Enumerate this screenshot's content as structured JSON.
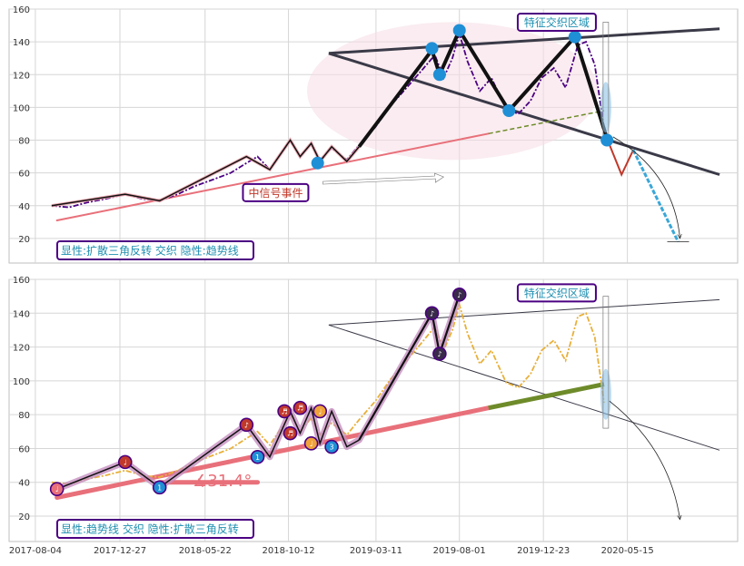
{
  "colors": {
    "price_dark": "#4b0082",
    "price_gold": "#e8b03a",
    "trend_pink": "#e8707a",
    "wedge_gray": "#3a3a48",
    "zigzag_black": "#111111",
    "node_blue": "#1f8fd6",
    "olive_green": "#6e8b2a",
    "proj_blue": "#3aa7d8",
    "label_text": "#1f8fb0",
    "label_border": "#4b0082",
    "event_text": "#c0392b"
  },
  "chart_data": [
    {
      "type": "line",
      "panel": "top",
      "ylim": [
        5,
        160
      ],
      "yticks": [
        20,
        40,
        60,
        80,
        100,
        120,
        140,
        160
      ],
      "x_ticks": [
        "2017-08-04",
        "2017-12-27",
        "2018-05-22",
        "2018-10-12",
        "2019-03-11",
        "2019-08-01",
        "2019-12-23",
        "2020-05-15"
      ],
      "grid": true,
      "series": [
        {
          "role": "price",
          "x": [
            "2017-09-01",
            "2017-10-01",
            "2017-11-01",
            "2017-12-01",
            "2018-01-05",
            "2018-02-05",
            "2018-03-05",
            "2018-04-05",
            "2018-05-05",
            "2018-06-05",
            "2018-07-05",
            "2018-08-01",
            "2018-08-20",
            "2018-09-10",
            "2018-10-01",
            "2018-10-15",
            "2018-11-01",
            "2018-11-20",
            "2018-12-05",
            "2018-12-25",
            "2019-01-20",
            "2019-02-10",
            "2019-03-10",
            "2019-04-05",
            "2019-05-05",
            "2019-06-01",
            "2019-06-20",
            "2019-07-05",
            "2019-07-20",
            "2019-08-01",
            "2019-08-15",
            "2019-09-05",
            "2019-09-25",
            "2019-10-20",
            "2019-11-10",
            "2019-12-01",
            "2019-12-20",
            "2020-01-10",
            "2020-01-30",
            "2020-02-20",
            "2020-03-05",
            "2020-03-20",
            "2020-04-05"
          ],
          "y": [
            40,
            39,
            42,
            44,
            47,
            44,
            43,
            47,
            52,
            56,
            60,
            66,
            70,
            62,
            73,
            80,
            70,
            78,
            68,
            75,
            68,
            77,
            88,
            101,
            113,
            124,
            132,
            118,
            130,
            145,
            128,
            110,
            118,
            99,
            96,
            104,
            118,
            124,
            112,
            138,
            140,
            126,
            87
          ]
        },
        {
          "role": "zigzag",
          "x": [
            "2017-09-01",
            "2018-01-05",
            "2018-03-05",
            "2018-08-01",
            "2018-09-10",
            "2018-10-15",
            "2018-11-01",
            "2018-11-20",
            "2018-12-05",
            "2018-12-25",
            "2019-01-20",
            "2019-02-10",
            "2019-06-15",
            "2019-06-28",
            "2019-08-01",
            "2019-10-25",
            "2020-02-15",
            "2020-04-10"
          ],
          "y": [
            40,
            47,
            43,
            70,
            62,
            80,
            70,
            78,
            67,
            76,
            67,
            76,
            135,
            120,
            147,
            98,
            143,
            81
          ]
        },
        {
          "role": "trend",
          "x": [
            "2017-09-10",
            "2019-09-20"
          ],
          "y": [
            31,
            84
          ]
        },
        {
          "role": "trend-extension",
          "x": [
            "2019-09-20",
            "2020-04-05"
          ],
          "y": [
            84,
            98
          ]
        },
        {
          "role": "wedge-upper",
          "x": [
            "2018-12-20",
            "2020-10-20"
          ],
          "y": [
            133,
            148
          ]
        },
        {
          "role": "wedge-lower",
          "x": [
            "2018-12-20",
            "2020-10-20"
          ],
          "y": [
            133,
            59
          ]
        },
        {
          "role": "projection",
          "x": [
            "2020-04-10",
            "2020-05-05",
            "2020-05-25",
            "2020-08-10"
          ],
          "y": [
            81,
            59,
            74,
            18
          ]
        },
        {
          "role": "nodes",
          "x": [
            "2018-12-01",
            "2019-06-15",
            "2019-06-28",
            "2019-08-01",
            "2019-10-25",
            "2020-02-15",
            "2020-04-10"
          ],
          "y": [
            66,
            136,
            120,
            147,
            98,
            143,
            80
          ]
        }
      ],
      "annotations": [
        {
          "text": "特征交织区域",
          "x": "2020-01-15",
          "y": 152
        },
        {
          "text": "中信号事件",
          "x": "2018-09-20",
          "y": 48
        }
      ],
      "title": "显性:扩散三角反转 交织 隐性:趋势线"
    },
    {
      "type": "line",
      "panel": "bottom",
      "ylim": [
        5,
        160
      ],
      "yticks": [
        20,
        40,
        60,
        80,
        100,
        120,
        140,
        160
      ],
      "x_ticks": [
        "2017-08-04",
        "2017-12-27",
        "2018-05-22",
        "2018-10-12",
        "2019-03-11",
        "2019-08-01",
        "2019-12-23",
        "2020-05-15"
      ],
      "grid": true,
      "series": [
        {
          "role": "price",
          "x": [
            "2017-09-01",
            "2017-10-01",
            "2017-11-01",
            "2017-12-01",
            "2018-01-05",
            "2018-02-05",
            "2018-03-05",
            "2018-04-05",
            "2018-05-05",
            "2018-06-05",
            "2018-07-05",
            "2018-08-01",
            "2018-08-20",
            "2018-09-10",
            "2018-10-01",
            "2018-10-15",
            "2018-11-01",
            "2018-11-20",
            "2018-12-05",
            "2018-12-25",
            "2019-01-20",
            "2019-02-10",
            "2019-03-10",
            "2019-04-05",
            "2019-05-05",
            "2019-06-01",
            "2019-06-20",
            "2019-07-05",
            "2019-07-20",
            "2019-08-01",
            "2019-08-15",
            "2019-09-05",
            "2019-09-25",
            "2019-10-20",
            "2019-11-10",
            "2019-12-01",
            "2019-12-20",
            "2020-01-10",
            "2020-01-30",
            "2020-02-20",
            "2020-03-05",
            "2020-03-20",
            "2020-04-05"
          ],
          "y": [
            40,
            39,
            42,
            44,
            47,
            44,
            43,
            47,
            52,
            56,
            60,
            66,
            70,
            62,
            73,
            80,
            70,
            78,
            68,
            75,
            68,
            77,
            88,
            101,
            113,
            124,
            132,
            118,
            130,
            145,
            128,
            110,
            118,
            99,
            96,
            104,
            118,
            124,
            112,
            138,
            140,
            126,
            87
          ]
        },
        {
          "role": "zigzag",
          "x": [
            "2017-09-10",
            "2018-01-05",
            "2018-03-05",
            "2018-08-01",
            "2018-09-10",
            "2018-10-15",
            "2018-11-01",
            "2018-11-20",
            "2018-12-05",
            "2018-12-25",
            "2019-01-20",
            "2019-02-10",
            "2019-06-15",
            "2019-06-28",
            "2019-08-01"
          ],
          "y": [
            36,
            52,
            37,
            74,
            55,
            82,
            69,
            84,
            63,
            82,
            61,
            65,
            140,
            116,
            151
          ]
        },
        {
          "role": "trend",
          "x": [
            "2017-09-10",
            "2019-09-20"
          ],
          "y": [
            31,
            84
          ]
        },
        {
          "role": "trend-extension",
          "x": [
            "2019-09-20",
            "2020-04-05"
          ],
          "y": [
            84,
            98
          ]
        },
        {
          "role": "flat-ref",
          "x": [
            "2018-03-05",
            "2018-08-20"
          ],
          "y": [
            40,
            40
          ]
        },
        {
          "role": "wedge-upper",
          "x": [
            "2018-12-20",
            "2020-10-20"
          ],
          "y": [
            133,
            148
          ]
        },
        {
          "role": "wedge-lower",
          "x": [
            "2018-12-20",
            "2020-10-20"
          ],
          "y": [
            133,
            59
          ]
        },
        {
          "role": "markers",
          "x": [
            "2017-09-10",
            "2018-01-05",
            "2018-03-05",
            "2018-08-01",
            "2018-08-20",
            "2018-10-05",
            "2018-10-15",
            "2018-11-01",
            "2018-11-20",
            "2018-12-05",
            "2018-12-25",
            "2019-06-15",
            "2019-06-28",
            "2019-08-01"
          ],
          "y": [
            36,
            52,
            37,
            74,
            55,
            82,
            69,
            84,
            63,
            82,
            61,
            140,
            116,
            151
          ],
          "labels": [
            "♩",
            "♩",
            "1",
            "♪",
            "1",
            "♬",
            "♬",
            "♬",
            "♩",
            "♩",
            "3",
            "♪",
            "♪",
            "♪"
          ]
        }
      ],
      "annotations": [
        {
          "text": "特征交织区域",
          "x": "2020-01-15",
          "y": 152
        },
        {
          "text": "∡31.4°",
          "x": "2018-06-01",
          "y": 42
        }
      ],
      "title": "显性:趋势线 交织 隐性:扩散三角反转"
    }
  ]
}
